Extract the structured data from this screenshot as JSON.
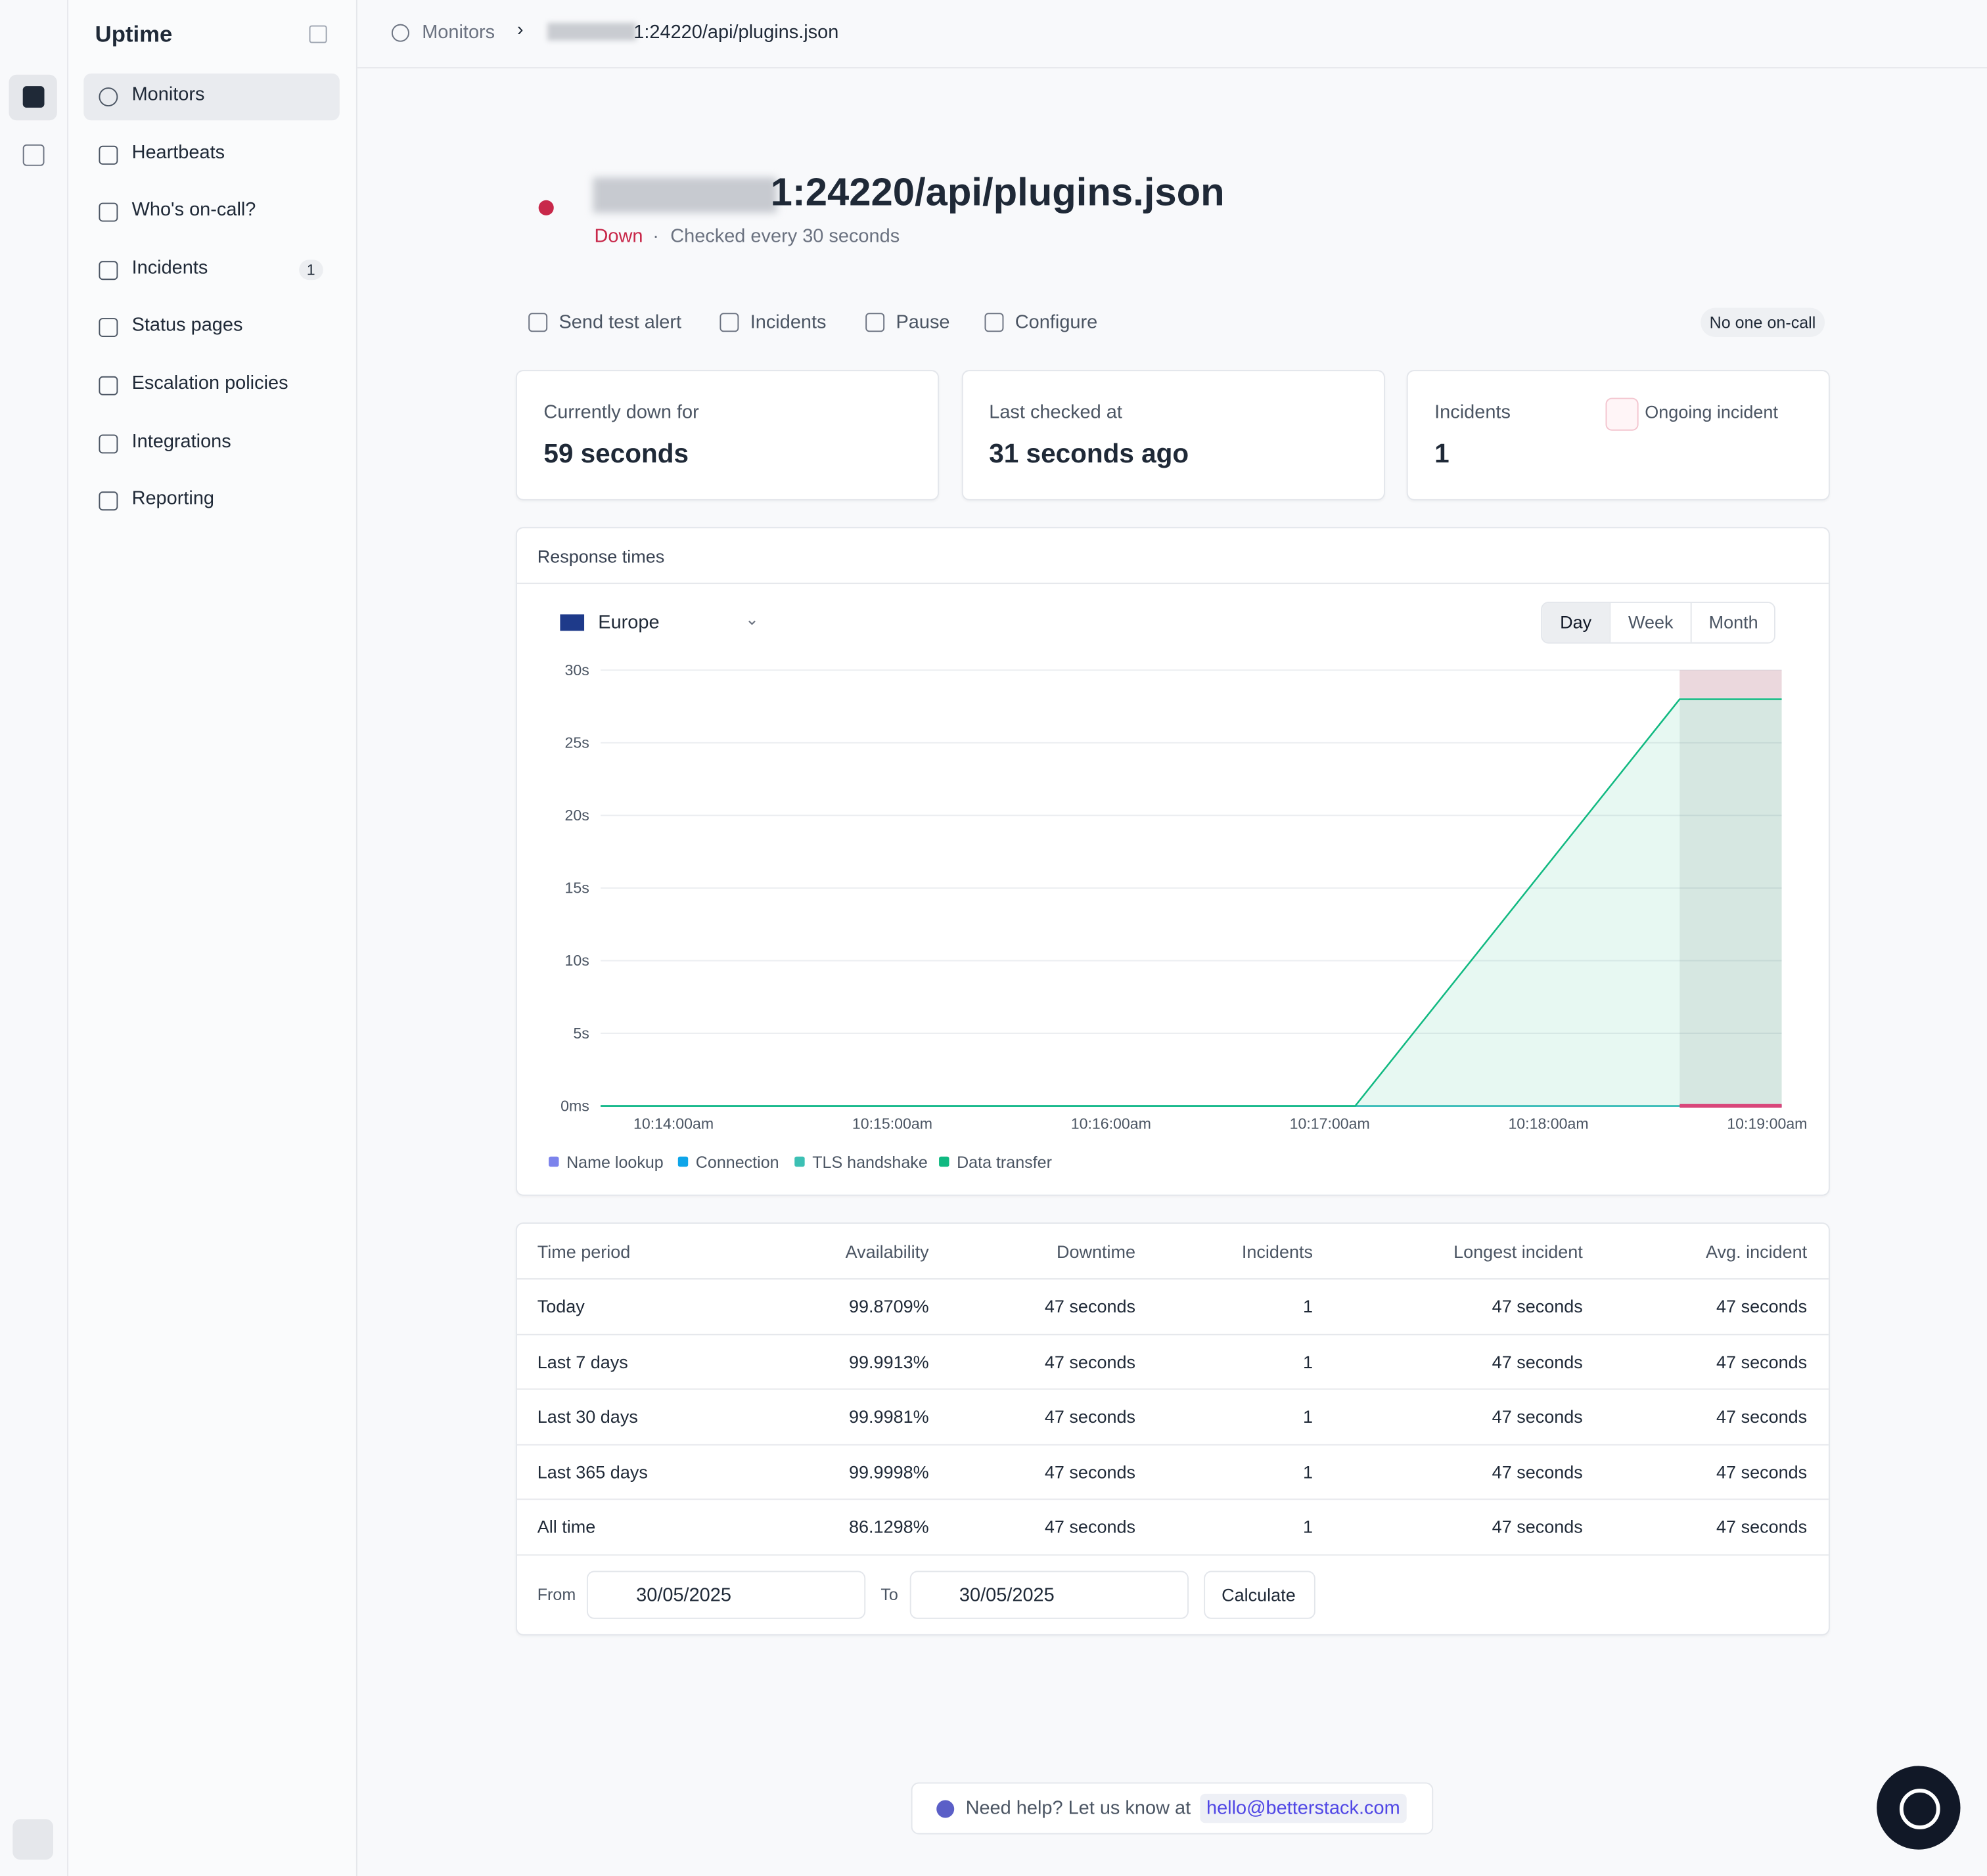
{
  "sidebar": {
    "title": "Uptime",
    "items": [
      {
        "label": "Monitors"
      },
      {
        "label": "Heartbeats"
      },
      {
        "label": "Who's on-call?"
      },
      {
        "label": "Incidents",
        "badge": "1"
      },
      {
        "label": "Status pages"
      },
      {
        "label": "Escalation policies"
      },
      {
        "label": "Integrations"
      },
      {
        "label": "Reporting"
      }
    ]
  },
  "breadcrumb": [
    "Monitors",
    "1:24220/api/plugins.json"
  ],
  "monitor": {
    "url": "1:24220/api/plugins.json",
    "status": "Down",
    "check_interval": "Checked every 30 seconds"
  },
  "actions": [
    "Send test alert",
    "Incidents",
    "Pause",
    "Configure"
  ],
  "on_call": "No one on-call",
  "cards": [
    {
      "label": "Currently down for",
      "value": "59 seconds"
    },
    {
      "label": "Last checked at",
      "value": "31 seconds ago"
    },
    {
      "label": "Incidents",
      "value": "1",
      "link": "Ongoing incident"
    }
  ],
  "chart_data": {
    "type": "area",
    "title": "Response times",
    "region": "Europe",
    "ranges": [
      "Day",
      "Week",
      "Month"
    ],
    "x": [
      "10:13:40am",
      "10:17:07am",
      "10:18:36am",
      "10:19:04am"
    ],
    "xlim": [
      "10:13:40am",
      "10:19:04am"
    ],
    "xticks": [
      "10:14:00am",
      "10:15:00am",
      "10:16:00am",
      "10:17:00am",
      "10:18:00am",
      "10:19:00am"
    ],
    "ylim": [
      0,
      30
    ],
    "yticks": [
      {
        "value": 0,
        "label": "0ms"
      },
      {
        "value": 5,
        "label": "5s"
      },
      {
        "value": 10,
        "label": "10s"
      },
      {
        "value": 15,
        "label": "15s"
      },
      {
        "value": 20,
        "label": "20s"
      },
      {
        "value": 25,
        "label": "25s"
      },
      {
        "value": 30,
        "label": "30s"
      }
    ],
    "grid": true,
    "incident_period": [
      "10:18:36am",
      "10:19:04am"
    ],
    "series": [
      {
        "name": "Name lookup",
        "color": "#7c83ec",
        "values": [
          0,
          0,
          0,
          0
        ]
      },
      {
        "name": "Connection",
        "color": "#0ea5e9",
        "values": [
          0,
          0,
          0,
          0
        ]
      },
      {
        "name": "TLS handshake",
        "color": "#3cc0b4",
        "values": [
          0,
          0,
          0,
          0
        ]
      },
      {
        "name": "Data transfer",
        "color": "#10b981",
        "values": [
          0,
          0,
          28,
          28
        ]
      }
    ]
  },
  "table": {
    "columns": [
      "Time period",
      "Availability",
      "Downtime",
      "Incidents",
      "Longest incident",
      "Avg. incident"
    ],
    "rows": [
      [
        "Today",
        "99.8709%",
        "47 seconds",
        "1",
        "47 seconds",
        "47 seconds"
      ],
      [
        "Last 7 days",
        "99.9913%",
        "47 seconds",
        "1",
        "47 seconds",
        "47 seconds"
      ],
      [
        "Last 30 days",
        "99.9981%",
        "47 seconds",
        "1",
        "47 seconds",
        "47 seconds"
      ],
      [
        "Last 365 days",
        "99.9998%",
        "47 seconds",
        "1",
        "47 seconds",
        "47 seconds"
      ],
      [
        "All time",
        "86.1298%",
        "47 seconds",
        "1",
        "47 seconds",
        "47 seconds"
      ]
    ]
  },
  "custom_range": {
    "from_label": "From",
    "from": "30/05/2025",
    "to_label": "To",
    "to": "30/05/2025",
    "button": "Calculate"
  },
  "help": {
    "text": "Need help? Let us know at",
    "email": "hello@betterstack.com"
  }
}
